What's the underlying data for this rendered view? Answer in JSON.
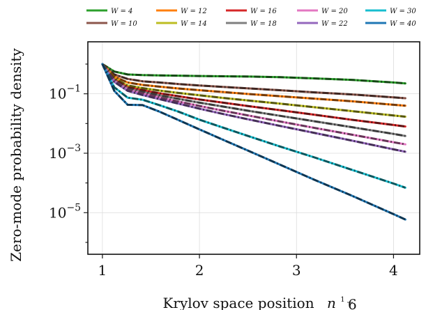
{
  "chart_data": {
    "type": "line",
    "xlabel": "Krylov space position",
    "xlabel_math": "n",
    "xlabel_exp_num": "1",
    "xlabel_exp_den": "6",
    "ylabel": "Zero-mode probability density",
    "xlim": [
      0.85,
      4.27
    ],
    "ylim_log10": [
      -6.4,
      0.75
    ],
    "yscale": "log",
    "grid": true,
    "legend_position": "top, above plot",
    "x_ticks": [
      1,
      2,
      3,
      4
    ],
    "x_tick_labels": [
      "1",
      "2",
      "3",
      "4"
    ],
    "y_ticks_log10": [
      -1,
      -3,
      -5
    ],
    "y_tick_bases": [
      "10",
      "10",
      "10"
    ],
    "y_tick_exponents": [
      "−1",
      "−3",
      "−5"
    ],
    "x": [
      1.0,
      1.122,
      1.26,
      1.414,
      1.587,
      1.782,
      2.0,
      2.245,
      2.52,
      2.828,
      3.175,
      3.564,
      4.0,
      4.122
    ],
    "series": [
      {
        "name": "W = 4",
        "color": "#2ca02c",
        "log10_values": [
          0.0,
          -0.25,
          -0.35,
          -0.37,
          -0.38,
          -0.39,
          -0.4,
          -0.41,
          -0.42,
          -0.44,
          -0.48,
          -0.53,
          -0.62,
          -0.65
        ]
      },
      {
        "name": "W = 10",
        "color": "#8c564b",
        "log10_values": [
          0.0,
          -0.35,
          -0.5,
          -0.58,
          -0.62,
          -0.67,
          -0.72,
          -0.77,
          -0.82,
          -0.88,
          -0.95,
          -1.02,
          -1.12,
          -1.15
        ]
      },
      {
        "name": "W = 12",
        "color": "#ff7f0e",
        "log10_values": [
          0.0,
          -0.42,
          -0.62,
          -0.7,
          -0.76,
          -0.82,
          -0.88,
          -0.94,
          -1.01,
          -1.08,
          -1.16,
          -1.25,
          -1.37,
          -1.4
        ]
      },
      {
        "name": "W = 14",
        "color": "#bcbd22",
        "log10_values": [
          0.0,
          -0.48,
          -0.72,
          -0.81,
          -0.89,
          -0.97,
          -1.05,
          -1.14,
          -1.23,
          -1.33,
          -1.45,
          -1.58,
          -1.73,
          -1.77
        ]
      },
      {
        "name": "W = 16",
        "color": "#d62728",
        "log10_values": [
          0.0,
          -0.52,
          -0.78,
          -0.88,
          -0.98,
          -1.08,
          -1.19,
          -1.3,
          -1.42,
          -1.55,
          -1.7,
          -1.87,
          -2.05,
          -2.1
        ]
      },
      {
        "name": "W = 18",
        "color": "#7f7f7f",
        "log10_values": [
          0.0,
          -0.55,
          -0.82,
          -0.94,
          -1.05,
          -1.17,
          -1.3,
          -1.43,
          -1.58,
          -1.74,
          -1.92,
          -2.12,
          -2.35,
          -2.42
        ]
      },
      {
        "name": "W = 20",
        "color": "#e377c2",
        "log10_values": [
          0.0,
          -0.58,
          -0.86,
          -0.99,
          -1.12,
          -1.26,
          -1.41,
          -1.57,
          -1.74,
          -1.93,
          -2.14,
          -2.37,
          -2.63,
          -2.7
        ]
      },
      {
        "name": "W = 22",
        "color": "#9467bd",
        "log10_values": [
          0.0,
          -0.6,
          -0.9,
          -1.04,
          -1.18,
          -1.33,
          -1.5,
          -1.68,
          -1.87,
          -2.08,
          -2.31,
          -2.57,
          -2.87,
          -2.95
        ]
      },
      {
        "name": "W = 30",
        "color": "#17becf",
        "log10_values": [
          0.0,
          -0.78,
          -1.13,
          -1.2,
          -1.38,
          -1.6,
          -1.87,
          -2.14,
          -2.44,
          -2.77,
          -3.13,
          -3.55,
          -4.02,
          -4.16
        ]
      },
      {
        "name": "W = 40",
        "color": "#1f77b4",
        "log10_values": [
          0.0,
          -0.9,
          -1.37,
          -1.38,
          -1.6,
          -1.88,
          -2.2,
          -2.55,
          -2.94,
          -3.38,
          -3.88,
          -4.42,
          -5.05,
          -5.23
        ]
      }
    ]
  }
}
